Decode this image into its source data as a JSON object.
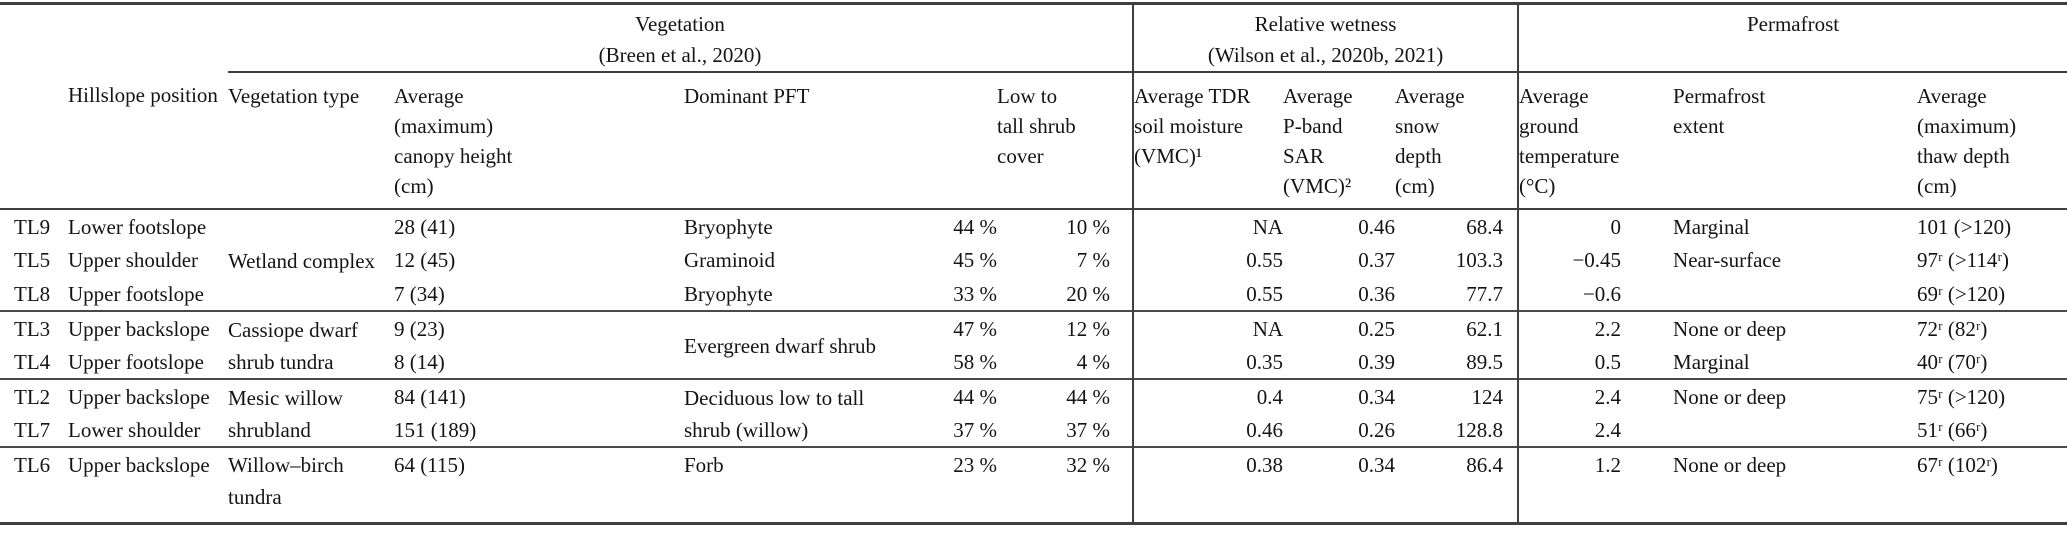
{
  "table": {
    "group_headers": {
      "vegetation": "Vegetation\n(Breen et al., 2020)",
      "wetness": "Relative wetness\n(Wilson et al., 2020b, 2021)",
      "permafrost": "Permafrost"
    },
    "col_headers": {
      "site": "",
      "hillslope": "Hillslope position",
      "veg_type": "Vegetation type",
      "canopy": "Average\n(maximum)\ncanopy height\n(cm)",
      "dominant_pft": "Dominant PFT",
      "shrub_cover": "Low to\ntall shrub\ncover",
      "tdr": "Average TDR\nsoil moisture\n(VMC)¹",
      "pband": "Average\nP-band\nSAR\n(VMC)²",
      "snow": "Average\nsnow\ndepth\n(cm)",
      "ground_temp": "Average\nground\ntemperature\n(°C)",
      "extent": "Permafrost\nextent",
      "thaw": "Average\n(maximum)\nthaw depth\n(cm)"
    },
    "rows": [
      {
        "sep": false,
        "cells": [
          {
            "v": "TL9",
            "c": "id"
          },
          {
            "v": "Lower footslope",
            "c": "hl"
          },
          {
            "v": "Wetland complex",
            "c": "vt merge",
            "rs": 3
          },
          {
            "v": "28 (41)",
            "c": "ch"
          },
          {
            "v": "Bryophyte",
            "c": "pn"
          },
          {
            "v": "44 %",
            "c": "pp"
          },
          {
            "v": "10 %",
            "c": "sc"
          },
          {
            "v": "NA",
            "c": "tdr vline"
          },
          {
            "v": "0.46",
            "c": "pb"
          },
          {
            "v": "68.4",
            "c": "sn"
          },
          {
            "v": "0",
            "c": "tp vline"
          },
          {
            "v": "Marginal",
            "c": "ex"
          },
          {
            "v": "101 (>120)",
            "c": "tw"
          }
        ]
      },
      {
        "sep": false,
        "cells": [
          {
            "v": "TL5",
            "c": "id"
          },
          {
            "v": "Upper shoulder",
            "c": "hl"
          },
          {
            "v": "12 (45)",
            "c": "ch"
          },
          {
            "v": "Graminoid",
            "c": "pn"
          },
          {
            "v": "45 %",
            "c": "pp"
          },
          {
            "v": "7 %",
            "c": "sc"
          },
          {
            "v": "0.55",
            "c": "tdr vline"
          },
          {
            "v": "0.37",
            "c": "pb"
          },
          {
            "v": "103.3",
            "c": "sn"
          },
          {
            "v": "−0.45",
            "c": "tp vline"
          },
          {
            "v": "Near-surface",
            "c": "ex"
          },
          {
            "v": "97ʳ (>114ʳ)",
            "c": "tw"
          }
        ]
      },
      {
        "sep": false,
        "cells": [
          {
            "v": "TL8",
            "c": "id"
          },
          {
            "v": "Upper footslope",
            "c": "hl"
          },
          {
            "v": "7 (34)",
            "c": "ch"
          },
          {
            "v": "Bryophyte",
            "c": "pn"
          },
          {
            "v": "33 %",
            "c": "pp"
          },
          {
            "v": "20 %",
            "c": "sc"
          },
          {
            "v": "0.55",
            "c": "tdr vline"
          },
          {
            "v": "0.36",
            "c": "pb"
          },
          {
            "v": "77.7",
            "c": "sn"
          },
          {
            "v": "−0.6",
            "c": "tp vline"
          },
          {
            "v": "",
            "c": "ex"
          },
          {
            "v": "69ʳ (>120)",
            "c": "tw"
          }
        ]
      },
      {
        "sep": true,
        "cells": [
          {
            "v": "TL3",
            "c": "id"
          },
          {
            "v": "Upper backslope",
            "c": "hl"
          },
          {
            "v": "Cassiope dwarf\nshrub tundra",
            "c": "vt merge",
            "rs": 2
          },
          {
            "v": "9 (23)",
            "c": "ch"
          },
          {
            "v": "Evergreen dwarf shrub",
            "c": "pn merge",
            "rs": 2
          },
          {
            "v": "47 %",
            "c": "pp"
          },
          {
            "v": "12 %",
            "c": "sc"
          },
          {
            "v": "NA",
            "c": "tdr vline"
          },
          {
            "v": "0.25",
            "c": "pb"
          },
          {
            "v": "62.1",
            "c": "sn"
          },
          {
            "v": "2.2",
            "c": "tp vline"
          },
          {
            "v": "None or deep",
            "c": "ex"
          },
          {
            "v": "72ʳ (82ʳ)",
            "c": "tw"
          }
        ]
      },
      {
        "sep": false,
        "cells": [
          {
            "v": "TL4",
            "c": "id"
          },
          {
            "v": "Upper footslope",
            "c": "hl"
          },
          {
            "v": "8 (14)",
            "c": "ch"
          },
          {
            "v": "58 %",
            "c": "pp"
          },
          {
            "v": "4 %",
            "c": "sc"
          },
          {
            "v": "0.35",
            "c": "tdr vline"
          },
          {
            "v": "0.39",
            "c": "pb"
          },
          {
            "v": "89.5",
            "c": "sn"
          },
          {
            "v": "0.5",
            "c": "tp vline"
          },
          {
            "v": "Marginal",
            "c": "ex"
          },
          {
            "v": "40ʳ (70ʳ)",
            "c": "tw"
          }
        ]
      },
      {
        "sep": true,
        "cells": [
          {
            "v": "TL2",
            "c": "id"
          },
          {
            "v": "Upper backslope",
            "c": "hl"
          },
          {
            "v": "Mesic willow\nshrubland",
            "c": "vt merge",
            "rs": 2
          },
          {
            "v": "84 (141)",
            "c": "ch"
          },
          {
            "v": "Deciduous low to tall\nshrub (willow)",
            "c": "pn merge",
            "rs": 2
          },
          {
            "v": "44 %",
            "c": "pp"
          },
          {
            "v": "44 %",
            "c": "sc"
          },
          {
            "v": "0.4",
            "c": "tdr vline"
          },
          {
            "v": "0.34",
            "c": "pb"
          },
          {
            "v": "124",
            "c": "sn"
          },
          {
            "v": "2.4",
            "c": "tp vline"
          },
          {
            "v": "None or deep",
            "c": "ex"
          },
          {
            "v": "75ʳ (>120)",
            "c": "tw"
          }
        ]
      },
      {
        "sep": false,
        "cells": [
          {
            "v": "TL7",
            "c": "id"
          },
          {
            "v": "Lower shoulder",
            "c": "hl"
          },
          {
            "v": "151 (189)",
            "c": "ch"
          },
          {
            "v": "37 %",
            "c": "pp"
          },
          {
            "v": "37 %",
            "c": "sc"
          },
          {
            "v": "0.46",
            "c": "tdr vline"
          },
          {
            "v": "0.26",
            "c": "pb"
          },
          {
            "v": "128.8",
            "c": "sn"
          },
          {
            "v": "2.4",
            "c": "tp vline"
          },
          {
            "v": "",
            "c": "ex"
          },
          {
            "v": "51ʳ (66ʳ)",
            "c": "tw"
          }
        ]
      },
      {
        "sep": true,
        "tall": true,
        "cells": [
          {
            "v": "TL6",
            "c": "id"
          },
          {
            "v": "Upper backslope",
            "c": "hl"
          },
          {
            "v": "Willow–birch\ntundra",
            "c": "vt"
          },
          {
            "v": "64 (115)",
            "c": "ch"
          },
          {
            "v": "Forb",
            "c": "pn"
          },
          {
            "v": "23 %",
            "c": "pp"
          },
          {
            "v": "32 %",
            "c": "sc"
          },
          {
            "v": "0.38",
            "c": "tdr vline"
          },
          {
            "v": "0.34",
            "c": "pb"
          },
          {
            "v": "86.4",
            "c": "sn"
          },
          {
            "v": "1.2",
            "c": "tp vline"
          },
          {
            "v": "None or deep",
            "c": "ex"
          },
          {
            "v": "67ʳ (102ʳ)",
            "c": "tw"
          }
        ]
      }
    ]
  }
}
